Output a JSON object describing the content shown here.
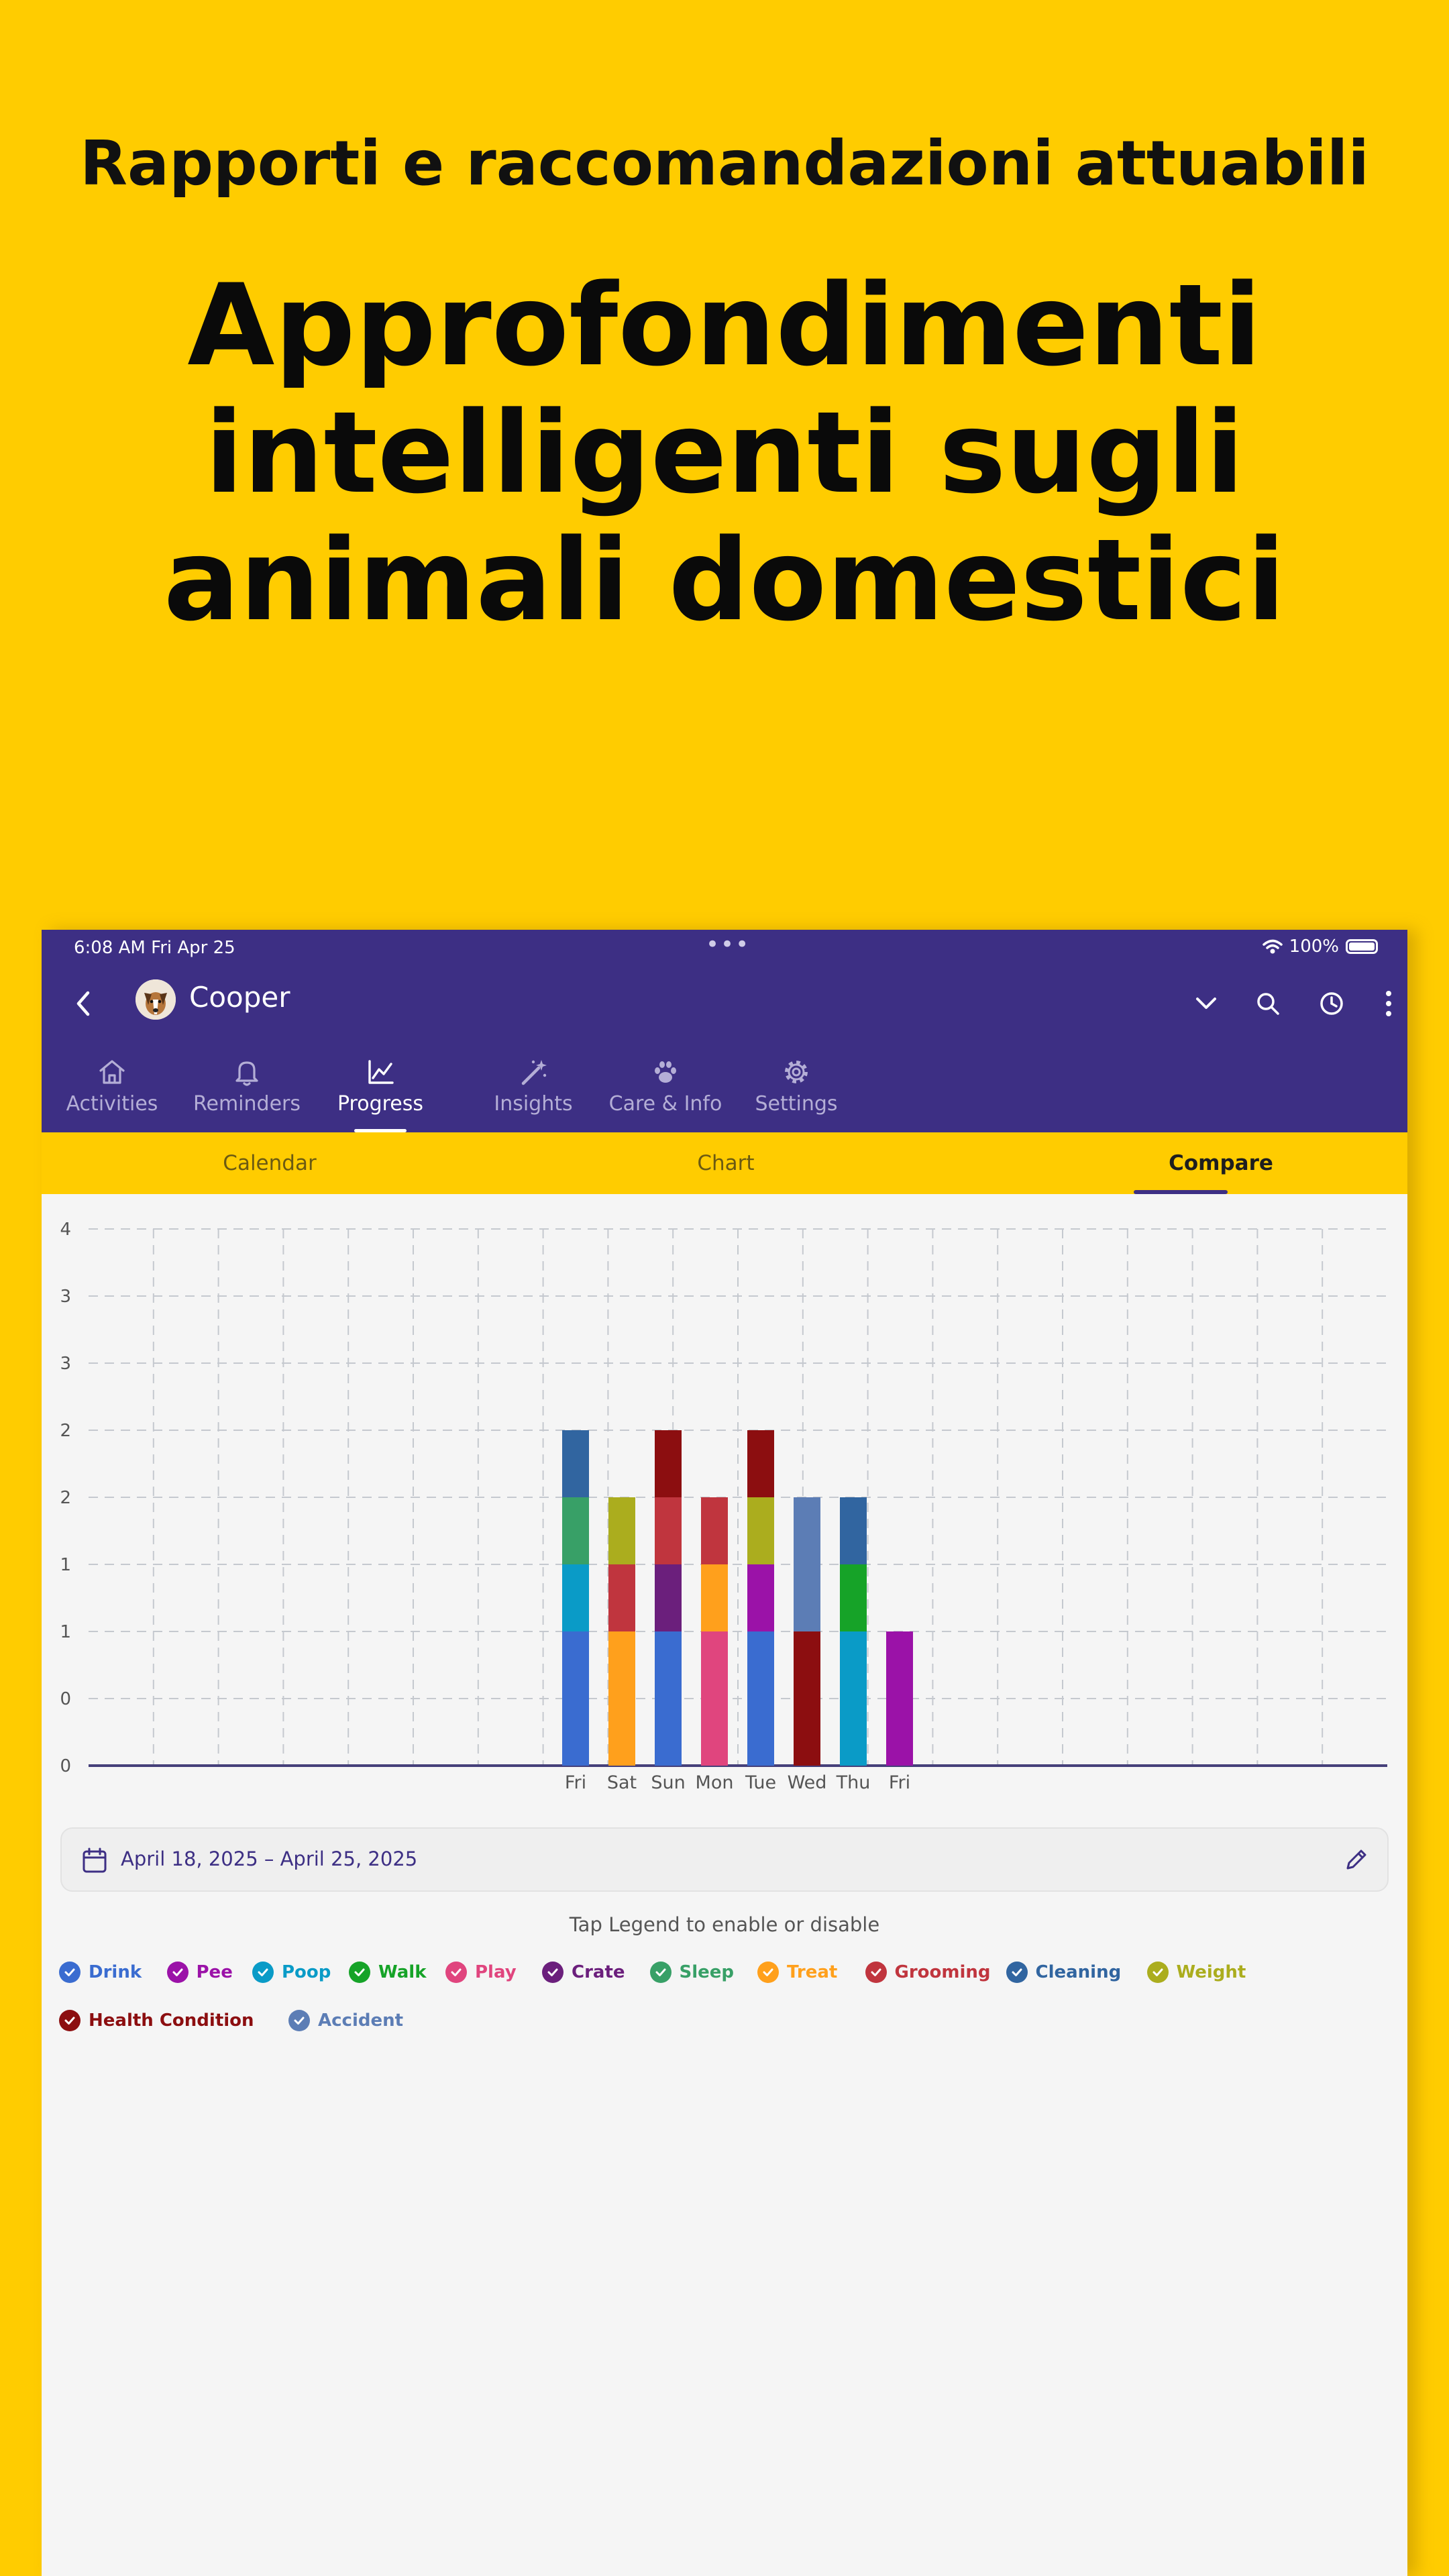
{
  "promo": {
    "subtitle": "Rapporti e raccomandazioni attuabili",
    "title": "Approfondimenti intelligenti sugli animali domestici"
  },
  "status_bar": {
    "time": "6:08 AM   Fri Apr 25",
    "battery": "100%"
  },
  "app_bar": {
    "pet_name": "Cooper",
    "tabs": [
      {
        "label": "Activities",
        "icon": "house-icon",
        "active": false
      },
      {
        "label": "Reminders",
        "icon": "bell-icon",
        "active": false
      },
      {
        "label": "Progress",
        "icon": "line-chart-icon",
        "active": true
      },
      {
        "label": "Insights",
        "icon": "magic-wand-icon",
        "active": false
      },
      {
        "label": "Care & Info",
        "icon": "paw-icon",
        "active": false
      },
      {
        "label": "Settings",
        "icon": "gear-icon",
        "active": false
      }
    ]
  },
  "sub_tabs": [
    {
      "label": "Calendar",
      "active": false
    },
    {
      "label": "Chart",
      "active": false
    },
    {
      "label": "Compare",
      "active": true
    }
  ],
  "chart_data": {
    "type": "bar",
    "stacked": true,
    "y_tick_labels": [
      "0",
      "0",
      "1",
      "1",
      "2",
      "2",
      "3",
      "3",
      "4"
    ],
    "ylim": [
      0,
      4
    ],
    "grid": true,
    "categories": [
      "Fri",
      "Sat",
      "Sun",
      "Mon",
      "Tue",
      "Wed",
      "Thu",
      "Fri"
    ],
    "series": [
      {
        "name": "Drink",
        "color": "#3A6CD0",
        "values": [
          1,
          0,
          1,
          0,
          1,
          0,
          0,
          0
        ]
      },
      {
        "name": "Pee",
        "color": "#9B12A8",
        "values": [
          0,
          0,
          0,
          0,
          0.5,
          0,
          0,
          1
        ]
      },
      {
        "name": "Poop",
        "color": "#0A9BC7",
        "values": [
          0.5,
          0,
          0,
          0,
          0,
          0,
          1,
          0
        ]
      },
      {
        "name": "Walk",
        "color": "#16A328",
        "values": [
          0,
          0,
          0,
          0,
          0,
          0,
          0.5,
          0
        ]
      },
      {
        "name": "Play",
        "color": "#E0457E",
        "values": [
          0,
          0,
          0,
          1,
          0,
          0,
          0,
          0
        ]
      },
      {
        "name": "Crate",
        "color": "#6B1F7C",
        "values": [
          0,
          0,
          0.5,
          0,
          0,
          0,
          0,
          0
        ]
      },
      {
        "name": "Sleep",
        "color": "#38A067",
        "values": [
          0.5,
          0,
          0,
          0,
          0,
          0,
          0,
          0
        ]
      },
      {
        "name": "Treat",
        "color": "#FFA01C",
        "values": [
          0,
          1,
          0,
          0.5,
          0,
          0,
          0,
          0
        ]
      },
      {
        "name": "Grooming",
        "color": "#C0353E",
        "values": [
          0,
          0.5,
          0.5,
          0.5,
          0,
          0,
          0,
          0
        ]
      },
      {
        "name": "Cleaning",
        "color": "#3165A0",
        "values": [
          0.5,
          0,
          0,
          0,
          0,
          0,
          0.5,
          0
        ]
      },
      {
        "name": "Weight",
        "color": "#ABAD1E",
        "values": [
          0,
          0.5,
          0,
          0,
          0.5,
          0,
          0,
          0
        ]
      },
      {
        "name": "Health Condition",
        "color": "#8C0E10",
        "values": [
          0,
          0,
          0.5,
          0,
          0.5,
          1,
          0,
          0
        ]
      },
      {
        "name": "Accident",
        "color": "#5C7DB5",
        "values": [
          0,
          0,
          0,
          0,
          0,
          1,
          0,
          0
        ]
      }
    ]
  },
  "date_range": {
    "label": "April 18, 2025 – April 25, 2025"
  },
  "legend_hint": "Tap Legend to enable or disable"
}
